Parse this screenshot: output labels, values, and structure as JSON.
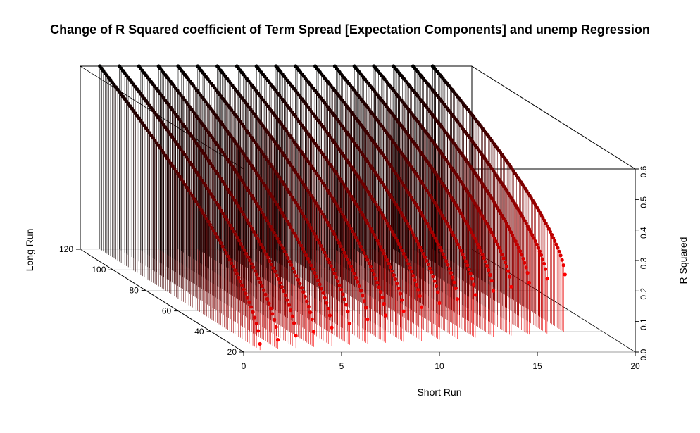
{
  "chart_data": {
    "type": "scatter3d",
    "title": "Change of R Squared coefficient of Term Spread [Expectation Components] and unemp Regression",
    "xlabel": "Short Run",
    "ylabel": "Long Run",
    "zlabel": "R Squared",
    "xlim": [
      0,
      20
    ],
    "ylim": [
      20,
      120
    ],
    "zlim": [
      0,
      0.6
    ],
    "x_ticks": [
      "0",
      "5",
      "10",
      "15",
      "20"
    ],
    "y_ticks": [
      "20",
      "40",
      "60",
      "80",
      "100",
      "120"
    ],
    "z_ticks": [
      "0.0",
      "0.1",
      "0.2",
      "0.3",
      "0.4",
      "0.5",
      "0.6"
    ],
    "grid": true,
    "drop_lines": true,
    "color_low": "#ff0000",
    "color_high": "#000000",
    "series": [
      {
        "x": 1,
        "y_range": [
          22,
          120
        ],
        "z_at_long": 0.6,
        "z_at_short": 0.02
      },
      {
        "x": 2,
        "y_range": [
          23,
          120
        ],
        "z_at_long": 0.6,
        "z_at_short": 0.03
      },
      {
        "x": 3,
        "y_range": [
          24,
          120
        ],
        "z_at_long": 0.6,
        "z_at_short": 0.04
      },
      {
        "x": 4,
        "y_range": [
          25,
          120
        ],
        "z_at_long": 0.6,
        "z_at_short": 0.05
      },
      {
        "x": 5,
        "y_range": [
          26,
          120
        ],
        "z_at_long": 0.6,
        "z_at_short": 0.06
      },
      {
        "x": 6,
        "y_range": [
          27,
          120
        ],
        "z_at_long": 0.6,
        "z_at_short": 0.07
      },
      {
        "x": 7,
        "y_range": [
          28,
          120
        ],
        "z_at_long": 0.6,
        "z_at_short": 0.08
      },
      {
        "x": 8,
        "y_range": [
          29,
          120
        ],
        "z_at_long": 0.6,
        "z_at_short": 0.09
      },
      {
        "x": 9,
        "y_range": [
          30,
          120
        ],
        "z_at_long": 0.6,
        "z_at_short": 0.1
      },
      {
        "x": 10,
        "y_range": [
          31,
          120
        ],
        "z_at_long": 0.6,
        "z_at_short": 0.11
      },
      {
        "x": 11,
        "y_range": [
          32,
          120
        ],
        "z_at_long": 0.6,
        "z_at_short": 0.12
      },
      {
        "x": 12,
        "y_range": [
          33,
          120
        ],
        "z_at_long": 0.6,
        "z_at_short": 0.13
      },
      {
        "x": 13,
        "y_range": [
          34,
          120
        ],
        "z_at_long": 0.6,
        "z_at_short": 0.14
      },
      {
        "x": 14,
        "y_range": [
          35,
          120
        ],
        "z_at_long": 0.6,
        "z_at_short": 0.15
      },
      {
        "x": 15,
        "y_range": [
          36,
          120
        ],
        "z_at_long": 0.6,
        "z_at_short": 0.16
      },
      {
        "x": 16,
        "y_range": [
          37,
          120
        ],
        "z_at_long": 0.6,
        "z_at_short": 0.17
      },
      {
        "x": 17,
        "y_range": [
          38,
          120
        ],
        "z_at_long": 0.6,
        "z_at_short": 0.18
      },
      {
        "x": 18,
        "y_range": [
          39,
          120
        ],
        "z_at_long": 0.6,
        "z_at_short": 0.19
      }
    ]
  }
}
